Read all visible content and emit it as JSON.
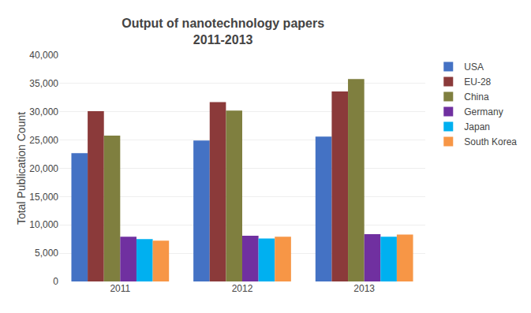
{
  "chart_data": {
    "type": "bar",
    "title": "Output of nanotechnology papers",
    "subtitle": "2011-2013",
    "categories": [
      "2011",
      "2012",
      "2013"
    ],
    "series": [
      {
        "name": "USA",
        "color": "#4472C4",
        "values": [
          22700,
          24900,
          25600
        ]
      },
      {
        "name": "EU-28",
        "color": "#8B3A3A",
        "values": [
          30100,
          31700,
          33600
        ]
      },
      {
        "name": "China",
        "color": "#7F7F3F",
        "values": [
          25800,
          30200,
          35800
        ]
      },
      {
        "name": "Germany",
        "color": "#7030A0",
        "values": [
          7900,
          8100,
          8350
        ]
      },
      {
        "name": "Japan",
        "color": "#00B0F0",
        "values": [
          7500,
          7600,
          7900
        ]
      },
      {
        "name": "South Korea",
        "color": "#F79646",
        "values": [
          7200,
          7900,
          8300
        ]
      }
    ],
    "ylabel": "Total Publication Count",
    "ylim": [
      0,
      40000
    ],
    "yticks": [
      0,
      {
        "value": 5000,
        "label": "5,000"
      },
      {
        "value": 10000,
        "label": "10,000"
      },
      {
        "value": 15000,
        "label": "15,000"
      },
      {
        "value": 20000,
        "label": "20,000"
      },
      {
        "value": 25000,
        "label": "25,000"
      },
      {
        "value": 30000,
        "label": "30,000"
      },
      {
        "value": 35000,
        "label": "35,000"
      },
      {
        "value": 40000,
        "label": "40,000"
      }
    ],
    "grid": true,
    "legend": "right"
  }
}
